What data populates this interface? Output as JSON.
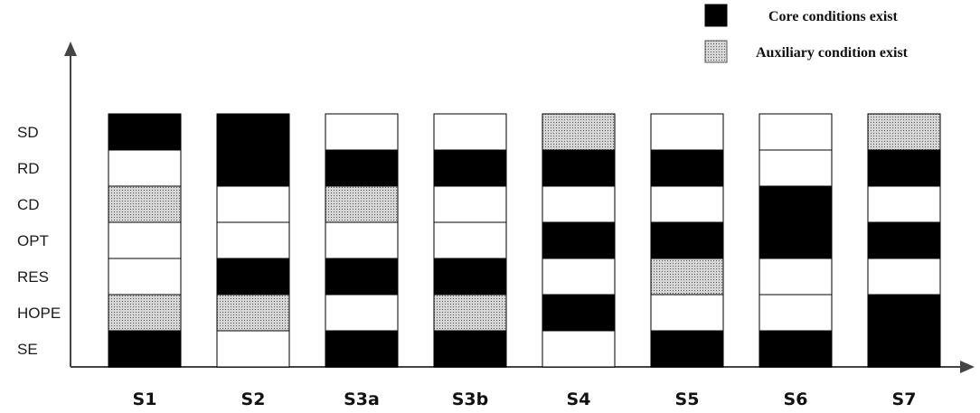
{
  "colors": {
    "core": "#000000",
    "auxiliary_fill": "#d6d6d6",
    "auxiliary_dot": "#555555",
    "absent": "#ffffff",
    "outline": "#000000",
    "axis": "#444444"
  },
  "legend": {
    "core_label": "Core conditions exist",
    "aux_label": "Auxiliary condition exist"
  },
  "chart_data": {
    "type": "table",
    "rows": [
      "SD",
      "RD",
      "CD",
      "OPT",
      "RES",
      "HOPE",
      "SE"
    ],
    "columns": [
      "S1",
      "S2",
      "S3a",
      "S3b",
      "S4",
      "S5",
      "S6",
      "S7"
    ],
    "cell_states": [
      "absent",
      "core",
      "auxiliary"
    ],
    "cells": {
      "S1": [
        "core",
        "absent",
        "auxiliary",
        "absent",
        "absent",
        "auxiliary",
        "core"
      ],
      "S2": [
        "core",
        "core",
        "absent",
        "absent",
        "core",
        "auxiliary",
        "absent"
      ],
      "S3a": [
        "absent",
        "core",
        "auxiliary",
        "absent",
        "core",
        "absent",
        "core"
      ],
      "S3b": [
        "absent",
        "core",
        "absent",
        "absent",
        "core",
        "auxiliary",
        "core"
      ],
      "S4": [
        "auxiliary",
        "core",
        "absent",
        "core",
        "absent",
        "core",
        "absent"
      ],
      "S5": [
        "absent",
        "core",
        "absent",
        "core",
        "auxiliary",
        "absent",
        "core"
      ],
      "S6": [
        "absent",
        "absent",
        "core",
        "core",
        "absent",
        "absent",
        "core"
      ],
      "S7": [
        "auxiliary",
        "core",
        "absent",
        "core",
        "absent",
        "core",
        "core"
      ]
    }
  }
}
